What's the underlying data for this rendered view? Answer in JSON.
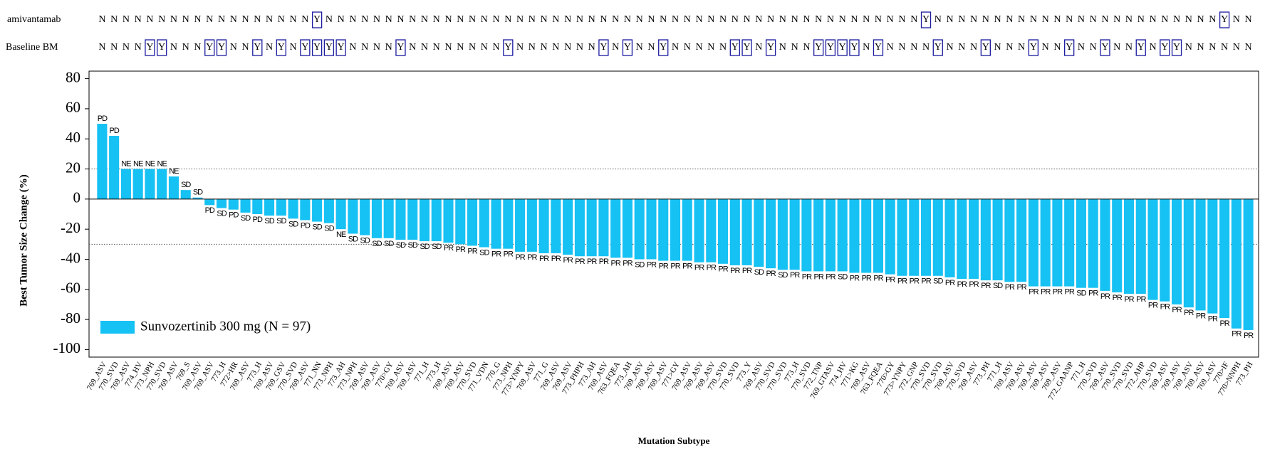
{
  "chart_data": {
    "type": "bar",
    "ylabel": "Best Tumor Size Change (%)",
    "xlabel": "Mutation Subtype",
    "ylim": [
      -105,
      85
    ],
    "yticks": [
      -100,
      -80,
      -60,
      -40,
      -20,
      0,
      20,
      40,
      60,
      80
    ],
    "reference_lines": [
      20,
      -30
    ],
    "legend": "lower left",
    "categories": [
      "769_ASV",
      "770_SVD",
      "769_ASV",
      "774_HV",
      "773_NPH",
      "770_SVD",
      "769_ASV",
      "769_S",
      "769_ASV",
      "769_ASV",
      "773_H",
      "772>HR",
      "769_ASV",
      "773_H",
      "769_ASV",
      "769_GSV",
      "770_SVD",
      "769_ASV",
      "771_NN",
      "773_NPH",
      "773_AH",
      "773_NPH",
      "769_ASV",
      "769_ASV",
      "770>GY",
      "769_ASV",
      "769_ASV",
      "771_H",
      "773_H",
      "769_ASV",
      "769_ASV",
      "770_SVD",
      "771_VDN",
      "770_G",
      "773_NPH",
      "773>YNPY",
      "769_ASV",
      "771_G",
      "769_ASV",
      "769_ASV",
      "773_PHPH",
      "773_AH",
      "769_ASV",
      "763_FQEA",
      "773_AH",
      "769_ASV",
      "769_ASV",
      "769_ASV",
      "771>GY",
      "769_ASV",
      "769_ASV",
      "769_ASV",
      "770_SVD",
      "770_SVD",
      "773_Y",
      "769_ASV",
      "770_SVD",
      "770_SVD",
      "773_H",
      "770_SVD",
      "772_TNP",
      "769_GTASV",
      "774_HV",
      "771>KG",
      "769_ASV",
      "763_FQEA",
      "770>GY",
      "773>YNPY",
      "772_GNP",
      "770_SVD",
      "770_SVD",
      "769_ASV",
      "770_SVD",
      "769_ASV",
      "773_PH",
      "771_H",
      "769_ASV",
      "769_ASV",
      "769_ASV",
      "769_ASV",
      "769_ASV",
      "772_GAANP",
      "771_H",
      "770_SVD",
      "769_ASV",
      "770_SVD",
      "770_SVD",
      "772_AHP",
      "770_SVD",
      "769_ASV",
      "769_ASV",
      "769_ASV",
      "769_ASV",
      "769_ASV",
      "770>IF",
      "770>NNPH",
      "773_PH"
    ],
    "series": [
      {
        "name": "Sunvozertinib 300 mg (N = 97)",
        "color": "#16c1f3",
        "values": [
          50,
          42,
          20,
          20,
          20,
          20,
          15,
          6,
          1,
          -4,
          -6,
          -7,
          -9,
          -10,
          -11,
          -11,
          -13,
          -14,
          -15,
          -16,
          -20,
          -23,
          -24,
          -26,
          -26,
          -27,
          -27,
          -28,
          -28,
          -29,
          -30,
          -31,
          -32,
          -33,
          -33,
          -35,
          -35,
          -36,
          -36,
          -37,
          -38,
          -38,
          -38,
          -39,
          -39,
          -40,
          -40,
          -41,
          -41,
          -41,
          -42,
          -42,
          -43,
          -44,
          -44,
          -45,
          -46,
          -47,
          -47,
          -48,
          -48,
          -48,
          -48,
          -49,
          -49,
          -49,
          -50,
          -51,
          -51,
          -51,
          -51,
          -52,
          -53,
          -53,
          -54,
          -54,
          -55,
          -55,
          -58,
          -58,
          -58,
          -58,
          -59,
          -59,
          -61,
          -62,
          -63,
          -63,
          -67,
          -68,
          -70,
          -72,
          -74,
          -76,
          -79,
          -86,
          -87
        ]
      }
    ],
    "annotations": [
      "PD",
      "PD",
      "NE",
      "NE",
      "NE",
      "NE",
      "NE",
      "SD",
      "SD",
      "PD",
      "SD",
      "PD",
      "SD",
      "PD",
      "SD",
      "SD",
      "SD",
      "PD",
      "SD",
      "SD",
      "NE",
      "SD",
      "SD",
      "SD",
      "SD",
      "SD",
      "SD",
      "SD",
      "SD",
      "PR",
      "PR",
      "PR",
      "SD",
      "PR",
      "PR",
      "PR",
      "PR",
      "PR",
      "PR",
      "PR",
      "PR",
      "PR",
      "PR",
      "PR",
      "PR",
      "SD",
      "PR",
      "PR",
      "PR",
      "PR",
      "PR",
      "PR",
      "PR",
      "PR",
      "PR",
      "SD",
      "PR",
      "SD",
      "PR",
      "PR",
      "PR",
      "PR",
      "SD",
      "PR",
      "PR",
      "PR",
      "PR",
      "PR",
      "PR",
      "PR",
      "SD",
      "PR",
      "PR",
      "PR",
      "PR",
      "SD",
      "PR",
      "PR",
      "PR",
      "PR",
      "PR",
      "PR",
      "SD",
      "PR",
      "PR",
      "PR",
      "PR",
      "PR",
      "PR",
      "PR",
      "PR",
      "PR",
      "PR",
      "PR",
      "PR",
      "PR",
      "PR"
    ],
    "rows": [
      {
        "label": "amivantamab",
        "values": [
          "N",
          "N",
          "N",
          "N",
          "N",
          "N",
          "N",
          "N",
          "N",
          "N",
          "N",
          "N",
          "N",
          "N",
          "N",
          "N",
          "N",
          "N",
          "Y",
          "N",
          "N",
          "N",
          "N",
          "N",
          "N",
          "N",
          "N",
          "N",
          "N",
          "N",
          "N",
          "N",
          "N",
          "N",
          "N",
          "N",
          "N",
          "N",
          "N",
          "N",
          "N",
          "N",
          "N",
          "N",
          "N",
          "N",
          "N",
          "N",
          "N",
          "N",
          "N",
          "N",
          "N",
          "N",
          "N",
          "N",
          "N",
          "N",
          "N",
          "N",
          "N",
          "N",
          "N",
          "N",
          "N",
          "N",
          "N",
          "N",
          "N",
          "Y",
          "N",
          "N",
          "N",
          "N",
          "N",
          "N",
          "N",
          "N",
          "N",
          "N",
          "N",
          "N",
          "N",
          "N",
          "N",
          "N",
          "N",
          "N",
          "N",
          "N",
          "N",
          "N",
          "N",
          "N",
          "Y",
          "N",
          "N"
        ]
      },
      {
        "label": "Baseline BM",
        "values": [
          "N",
          "N",
          "N",
          "N",
          "Y",
          "Y",
          "N",
          "N",
          "N",
          "Y",
          "Y",
          "N",
          "N",
          "Y",
          "N",
          "Y",
          "N",
          "Y",
          "Y",
          "Y",
          "Y",
          "N",
          "N",
          "N",
          "N",
          "Y",
          "N",
          "N",
          "N",
          "N",
          "N",
          "N",
          "N",
          "N",
          "Y",
          "N",
          "N",
          "N",
          "N",
          "N",
          "N",
          "N",
          "Y",
          "N",
          "Y",
          "N",
          "N",
          "Y",
          "N",
          "N",
          "N",
          "N",
          "N",
          "Y",
          "Y",
          "N",
          "Y",
          "N",
          "N",
          "N",
          "Y",
          "Y",
          "Y",
          "Y",
          "N",
          "Y",
          "N",
          "N",
          "N",
          "N",
          "Y",
          "N",
          "N",
          "N",
          "Y",
          "N",
          "N",
          "N",
          "Y",
          "N",
          "N",
          "Y",
          "N",
          "N",
          "Y",
          "N",
          "N",
          "Y",
          "N",
          "Y",
          "Y",
          "N",
          "N",
          "N",
          "N",
          "N",
          "N"
        ]
      }
    ]
  }
}
